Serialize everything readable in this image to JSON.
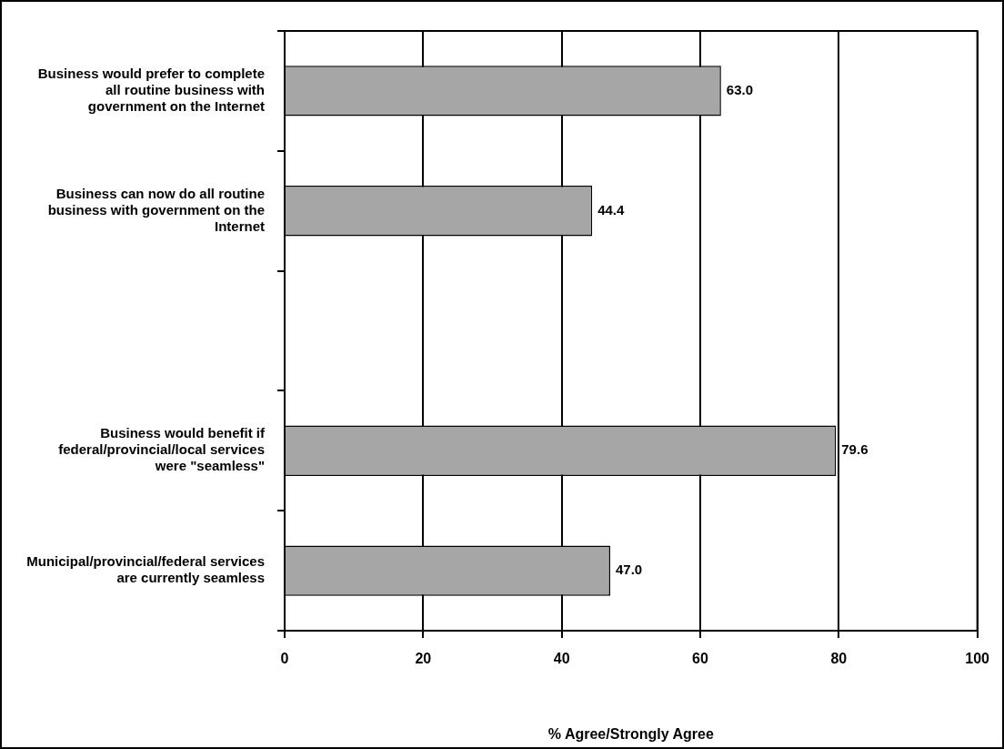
{
  "chart_data": {
    "type": "bar",
    "orientation": "horizontal",
    "xlabel": "% Agree/Strongly Agree",
    "categories": [
      "Business would prefer to complete all routine business with government on the Internet",
      "Business can now do all routine business with government on the Internet",
      null,
      "Business would benefit if federal/provincial/local services were \"seamless\"",
      "Municipal/provincial/federal services are currently seamless"
    ],
    "values": [
      63.0,
      44.4,
      null,
      79.6,
      47.0
    ],
    "value_labels": [
      "63.0",
      "44.4",
      null,
      "79.6",
      "47.0"
    ],
    "color": "#a6a6a6",
    "xlim": [
      0,
      100
    ],
    "xticks": [
      0,
      20,
      40,
      60,
      80,
      100
    ],
    "grid": "x",
    "legend": false
  }
}
